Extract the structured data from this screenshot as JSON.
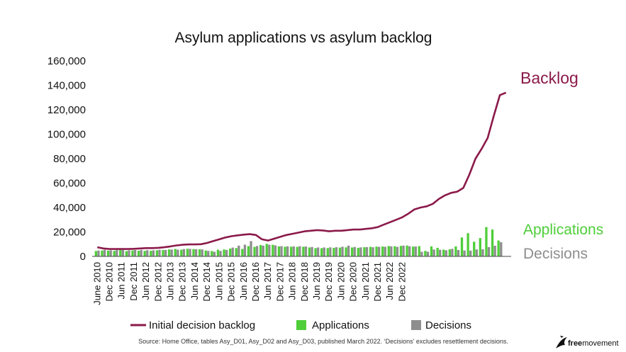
{
  "chart_data": {
    "type": "bar",
    "title": "Asylum applications vs asylum backlog",
    "ylim": [
      0,
      160000
    ],
    "yticks": [
      "0",
      "20,000",
      "40,000",
      "60,000",
      "80,000",
      "100,000",
      "120,000",
      "140,000",
      "160,000"
    ],
    "xtick_labels": [
      "June 2010",
      "Dec 2010",
      "Jun 2011",
      "Dec 2011",
      "Jun 2012",
      "Dec 2012",
      "Jun 2013",
      "Dec 2013",
      "Jun 2014",
      "Dec 2014",
      "Jun 2015",
      "Dec 2015",
      "Jun 2016",
      "Dec 2016",
      "Jun 2017",
      "Dec 2017",
      "Jun 2018",
      "Dec 2018",
      "Jun 2019",
      "Dec 2019",
      "Jun 2020",
      "Dec 2020",
      "Jun 2021",
      "Dec 2021",
      "Jun 2022",
      "Dec 2022"
    ],
    "months_per_tick": 6,
    "series": [
      {
        "name": "Initial decision backlog",
        "kind": "line",
        "color": "#8b1a4a",
        "values": [
          7500,
          6500,
          6000,
          6000,
          6000,
          6000,
          6200,
          6500,
          6800,
          6800,
          7000,
          7500,
          8200,
          9000,
          9500,
          9800,
          9800,
          10000,
          11000,
          12500,
          14000,
          15500,
          16500,
          17200,
          17800,
          18200,
          17500,
          14000,
          13000,
          14500,
          16000,
          17500,
          18500,
          19500,
          20500,
          21000,
          21500,
          21200,
          20500,
          21000,
          21000,
          21500,
          22000,
          22000,
          22500,
          23000,
          24000,
          26000,
          28000,
          30000,
          32000,
          35000,
          38500,
          40000,
          41000,
          43000,
          47000,
          50000,
          52000,
          53000,
          56000,
          67000,
          80000,
          88000,
          97000,
          115000,
          132000,
          134000
        ]
      },
      {
        "name": "Applications",
        "kind": "bar",
        "color": "#4fce3a",
        "values": [
          4400,
          4800,
          4700,
          4500,
          5500,
          4300,
          4900,
          4600,
          4500,
          4600,
          5000,
          5200,
          5700,
          6100,
          5500,
          6200,
          6000,
          5800,
          4800,
          4400,
          5500,
          5700,
          6400,
          6800,
          6100,
          8400,
          7800,
          9300,
          10300,
          9500,
          8200,
          7900,
          7900,
          7800,
          7900,
          7300,
          6700,
          6700,
          6800,
          7000,
          7200,
          7400,
          7300,
          7000,
          7500,
          7800,
          8000,
          8100,
          8500,
          8300,
          8600,
          8900,
          8000,
          8400,
          4500,
          8200,
          7000,
          5500,
          5800,
          8200,
          15500,
          19000,
          12000,
          15000,
          24000,
          22000,
          13000
        ]
      },
      {
        "name": "Decisions",
        "kind": "bar",
        "color": "#8e8e8e",
        "values": [
          4800,
          5400,
          5000,
          5200,
          5200,
          5000,
          5200,
          5300,
          5100,
          5000,
          5400,
          5300,
          5600,
          5500,
          6000,
          6200,
          5900,
          5700,
          4500,
          3800,
          4500,
          5300,
          7200,
          8800,
          9600,
          12500,
          8500,
          8800,
          9500,
          9000,
          8400,
          8200,
          8200,
          8300,
          8100,
          7700,
          7300,
          7300,
          7400,
          7500,
          7900,
          8800,
          7700,
          7400,
          7600,
          7500,
          7800,
          7900,
          8200,
          7800,
          8800,
          8300,
          8100,
          3800,
          3800,
          5600,
          5400,
          5000,
          6200,
          5200,
          4800,
          4700,
          5700,
          5800,
          7600,
          8700,
          11600
        ]
      }
    ],
    "annotations": [
      {
        "text": "Backlog",
        "color": "#8b1a4a"
      },
      {
        "text": "Applications",
        "color": "#4fce3a"
      },
      {
        "text": "Decisions",
        "color": "#8e8e8e"
      }
    ],
    "legend": {
      "placement": "bottom",
      "items": [
        "Initial decision backlog",
        "Applications",
        "Decisions"
      ]
    },
    "source": "Source: Home Office, tables Asy_D01, Asy_D02 and Asy_D03, published March 2022. ‘Decisions’ excludes resettlement decisions.",
    "grid": false
  },
  "brand": {
    "bold": "free",
    "regular": "movement",
    "icon": "bird-logo-icon"
  }
}
